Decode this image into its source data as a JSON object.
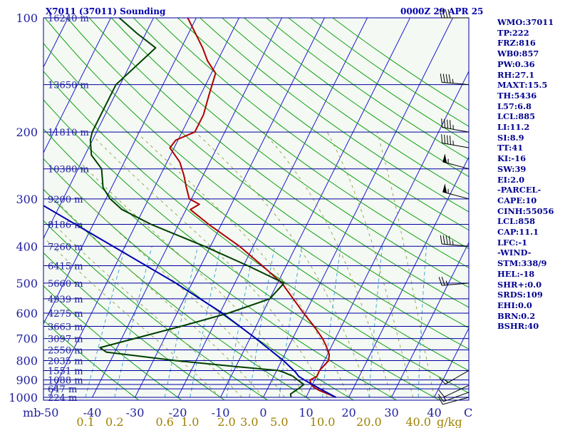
{
  "header": {
    "station": "X7011 (37011) Sounding",
    "time": "0000Z 29 APR 25"
  },
  "indices": [
    "WMO:37011",
    "TP:222",
    "FRZ:816",
    "WB0:857",
    "PW:0.36",
    "RH:27.1",
    "MAXT:15.5",
    "TH:5436",
    "L57:6.8",
    "LCL:885",
    "LI:11.2",
    "SI:8.9",
    "TT:41",
    "KI:-16",
    "SW:39",
    "EI:2.0",
    "-PARCEL-",
    "CAPE:10",
    "CINH:55056",
    "LCL:858",
    "CAP:11.1",
    "LFC:-1",
    "-WIND-",
    "STM:338/9",
    "HEL:-18",
    "SHR+:0.0",
    "SRDS:109",
    "EHI:0.0",
    "BRN:0.2",
    "BSHR:40"
  ],
  "chart_data": {
    "type": "skew-t",
    "title": "X7011 (37011) Sounding",
    "subtitle": "0000Z 29 APR 25",
    "x_axis": {
      "label": "",
      "unit_label": "mb",
      "temperature_ticks": [
        -50,
        -40,
        -30,
        -20,
        -10,
        0,
        10,
        20,
        30,
        40
      ],
      "temperature_tick_labels": [
        "-50",
        "-40",
        "-30",
        "-20",
        "-10",
        "0",
        "10",
        "20",
        "30",
        "40"
      ],
      "unit": "C",
      "mixing_ratio_ticks": [
        "0.1",
        "0.2",
        "0.6",
        "1.0",
        "2.0",
        "3.0",
        "5.0",
        "10.0",
        "20.0",
        "40.0"
      ],
      "mixing_ratio_unit": "g/kg"
    },
    "y_axis": {
      "scale": "log",
      "range_hpa": [
        1000,
        100
      ],
      "pressure_labels": [
        "1000",
        "900",
        "800",
        "700",
        "600",
        "500",
        "400",
        "300",
        "200",
        "100"
      ],
      "height_labels": [
        {
          "p": 100,
          "label": "16240 m"
        },
        {
          "p": 150,
          "label": "13650 m"
        },
        {
          "p": 200,
          "label": "11810 m"
        },
        {
          "p": 250,
          "label": "10380 m"
        },
        {
          "p": 300,
          "label": "9200 m"
        },
        {
          "p": 350,
          "label": "8186 m"
        },
        {
          "p": 400,
          "label": "7260 m"
        },
        {
          "p": 450,
          "label": "6415 m"
        },
        {
          "p": 500,
          "label": "5660 m"
        },
        {
          "p": 550,
          "label": "4939 m"
        },
        {
          "p": 600,
          "label": "4275 m"
        },
        {
          "p": 650,
          "label": "3663 m"
        },
        {
          "p": 700,
          "label": "3097 m"
        },
        {
          "p": 750,
          "label": "2550 m"
        },
        {
          "p": 800,
          "label": "2035 m"
        },
        {
          "p": 850,
          "label": "1551 m"
        },
        {
          "p": 900,
          "label": "1088 m"
        },
        {
          "p": 950,
          "label": "647 m"
        },
        {
          "p": 1000,
          "label": "224 m"
        }
      ]
    },
    "isobars_hpa": [
      1000,
      950,
      925,
      900,
      850,
      800,
      750,
      700,
      650,
      600,
      550,
      500,
      450,
      400,
      350,
      300,
      250,
      200,
      150,
      100
    ],
    "series": [
      {
        "kind": "temperature",
        "color": "#b00000",
        "points": [
          [
            1000,
            17.0
          ],
          [
            980,
            14.8
          ],
          [
            960,
            12.4
          ],
          [
            940,
            10.6
          ],
          [
            925,
            9.7
          ],
          [
            900,
            8.9
          ],
          [
            880,
            10.1
          ],
          [
            850,
            10.0
          ],
          [
            820,
            10.6
          ],
          [
            800,
            11.0
          ],
          [
            770,
            10.4
          ],
          [
            730,
            8.6
          ],
          [
            700,
            7.0
          ],
          [
            650,
            3.6
          ],
          [
            600,
            -0.4
          ],
          [
            550,
            -4.5
          ],
          [
            500,
            -9.0
          ],
          [
            450,
            -15.6
          ],
          [
            400,
            -23.2
          ],
          [
            350,
            -33.0
          ],
          [
            320,
            -39.0
          ],
          [
            310,
            -37.5
          ],
          [
            300,
            -40.5
          ],
          [
            280,
            -42.5
          ],
          [
            260,
            -44.5
          ],
          [
            240,
            -47.0
          ],
          [
            220,
            -51.0
          ],
          [
            210,
            -50.5
          ],
          [
            200,
            -47.0
          ],
          [
            180,
            -47.0
          ],
          [
            160,
            -48.0
          ],
          [
            140,
            -49.0
          ],
          [
            130,
            -52.3
          ],
          [
            120,
            -55.0
          ],
          [
            100,
            -62.0
          ]
        ]
      },
      {
        "kind": "dewpoint",
        "color": "#004000",
        "points": [
          [
            1000,
            6.5
          ],
          [
            980,
            6.0
          ],
          [
            950,
            7.2
          ],
          [
            925,
            8.0
          ],
          [
            900,
            6.0
          ],
          [
            880,
            4.5
          ],
          [
            860,
            2.0
          ],
          [
            850,
            0.5
          ],
          [
            830,
            -10.0
          ],
          [
            800,
            -25.0
          ],
          [
            760,
            -42.0
          ],
          [
            740,
            -44.0
          ],
          [
            700,
            -37.0
          ],
          [
            650,
            -27.6
          ],
          [
            600,
            -18.0
          ],
          [
            550,
            -10.0
          ],
          [
            500,
            -8.5
          ],
          [
            450,
            -19.0
          ],
          [
            400,
            -31.4
          ],
          [
            350,
            -46.5
          ],
          [
            320,
            -55.0
          ],
          [
            300,
            -59.0
          ],
          [
            280,
            -62.0
          ],
          [
            250,
            -64.5
          ],
          [
            230,
            -68.5
          ],
          [
            210,
            -70.5
          ],
          [
            200,
            -71.0
          ],
          [
            180,
            -71.0
          ],
          [
            150,
            -71.0
          ],
          [
            120,
            -66.0
          ],
          [
            110,
            -72.0
          ],
          [
            100,
            -78.0
          ]
        ]
      },
      {
        "kind": "parcel",
        "color": "#0000b0",
        "points": [
          [
            1000,
            17.0
          ],
          [
            950,
            12.3
          ],
          [
            900,
            7.6
          ],
          [
            880,
            5.8
          ],
          [
            858,
            4.6
          ],
          [
            800,
            0.4
          ],
          [
            700,
            -8.6
          ],
          [
            600,
            -19.4
          ],
          [
            500,
            -33.8
          ],
          [
            400,
            -52.8
          ],
          [
            300,
            -77.3
          ],
          [
            250,
            -91.6
          ],
          [
            200,
            -107.0
          ],
          [
            150,
            -126.8
          ],
          [
            130,
            -135.6
          ]
        ]
      }
    ],
    "winds": [
      {
        "p": 1000,
        "dir": 255,
        "spd": 10
      },
      {
        "p": 970,
        "dir": 250,
        "spd": 15
      },
      {
        "p": 930,
        "dir": 245,
        "spd": 10
      },
      {
        "p": 850,
        "dir": 240,
        "spd": 15
      },
      {
        "p": 500,
        "dir": 265,
        "spd": 25
      },
      {
        "p": 400,
        "dir": 275,
        "spd": 45
      },
      {
        "p": 300,
        "dir": 285,
        "spd": 55
      },
      {
        "p": 250,
        "dir": 285,
        "spd": 55
      },
      {
        "p": 220,
        "dir": 280,
        "spd": 45
      },
      {
        "p": 200,
        "dir": 280,
        "spd": 45
      },
      {
        "p": 150,
        "dir": 275,
        "spd": 45
      },
      {
        "p": 100,
        "dir": 270,
        "spd": 40
      }
    ],
    "colors": {
      "isobar": "#0000a0",
      "isotherm": "#1c1ccc",
      "dry_adiabat": "#10a010",
      "moist_adiabat": "#90a040",
      "mixing_ratio": "#30a0d0",
      "background": "#f0f8f0",
      "wind": "#000000"
    }
  }
}
